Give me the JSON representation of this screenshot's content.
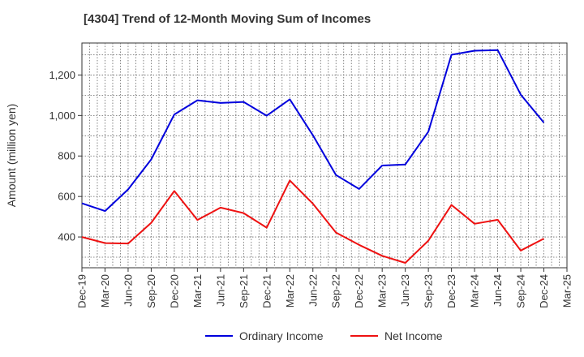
{
  "chart_data": {
    "type": "line",
    "title": "[4304]  Trend of 12-Month Moving Sum of Incomes",
    "xlabel": "",
    "ylabel": "Amount (million yen)",
    "ylim": [
      248,
      1358
    ],
    "y_ticks": [
      400,
      600,
      800,
      1000,
      1200
    ],
    "y_tick_labels": [
      "400",
      "600",
      "800",
      "1,000",
      "1,200"
    ],
    "categories": [
      "Dec-19",
      "Mar-20",
      "Jun-20",
      "Sep-20",
      "Dec-20",
      "Mar-21",
      "Jun-21",
      "Sep-21",
      "Dec-21",
      "Mar-22",
      "Jun-22",
      "Sep-22",
      "Dec-22",
      "Mar-23",
      "Jun-23",
      "Sep-23",
      "Dec-23",
      "Mar-24",
      "Jun-24",
      "Sep-24",
      "Dec-24",
      "Mar-25"
    ],
    "grid": true,
    "legend_position": "bottom",
    "series": [
      {
        "name": "Ordinary Income",
        "color": "#0000dd",
        "values": [
          566,
          528,
          635,
          783,
          1005,
          1075,
          1062,
          1067,
          999,
          1080,
          902,
          706,
          637,
          753,
          758,
          920,
          1300,
          1320,
          1323,
          1103,
          965,
          null
        ]
      },
      {
        "name": "Net Income",
        "color": "#ee1111",
        "values": [
          400,
          370,
          368,
          470,
          627,
          484,
          545,
          518,
          446,
          679,
          564,
          422,
          361,
          307,
          272,
          382,
          558,
          465,
          485,
          333,
          392,
          null
        ]
      }
    ]
  }
}
